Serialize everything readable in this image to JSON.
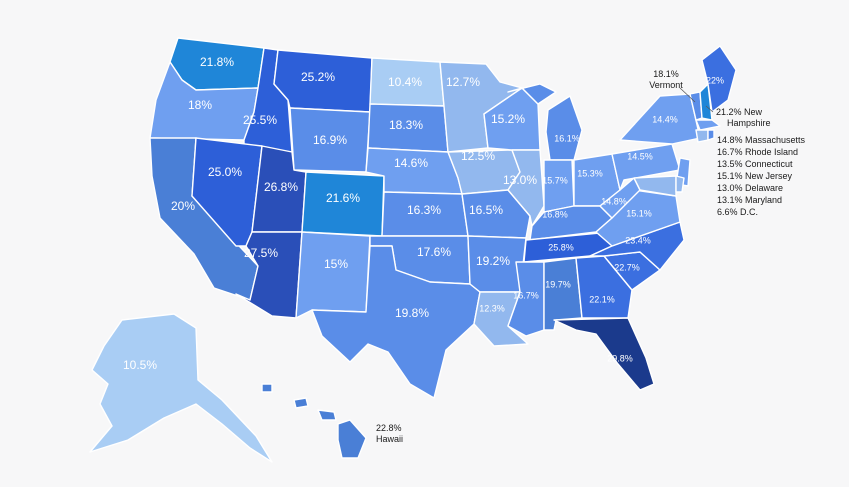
{
  "palette": {
    "background": "#f7f7f8",
    "c10": "#a9cdf4",
    "c13": "#92b8ee",
    "c15": "#6f9ff0",
    "c17": "#5a8de8",
    "c20": "#4a7fd6",
    "c21": "#1f86d8",
    "c23": "#3b6fe0",
    "c25": "#2d5fd8",
    "c27": "#2a4fb8",
    "c30": "#1b3a8c",
    "label_light": "#ffffff",
    "label_dark": "#1a1a1a"
  },
  "states": [
    {
      "code": "WA",
      "value": "21.8%"
    },
    {
      "code": "OR",
      "value": "18%"
    },
    {
      "code": "CA",
      "value": "20%"
    },
    {
      "code": "ID",
      "value": "25.5%"
    },
    {
      "code": "NV",
      "value": "25.0%"
    },
    {
      "code": "MT",
      "value": "25.2%"
    },
    {
      "code": "WY",
      "value": "16.9%"
    },
    {
      "code": "UT",
      "value": "26.8%"
    },
    {
      "code": "CO",
      "value": "21.6%"
    },
    {
      "code": "AZ",
      "value": "27.5%"
    },
    {
      "code": "NM",
      "value": "15%"
    },
    {
      "code": "ND",
      "value": "10.4%"
    },
    {
      "code": "SD",
      "value": "18.3%"
    },
    {
      "code": "NE",
      "value": "14.6%"
    },
    {
      "code": "KS",
      "value": "16.3%"
    },
    {
      "code": "OK",
      "value": "17.6%"
    },
    {
      "code": "TX",
      "value": "19.8%"
    },
    {
      "code": "MN",
      "value": "12.7%"
    },
    {
      "code": "IA",
      "value": "12.5%"
    },
    {
      "code": "MO",
      "value": "16.5%"
    },
    {
      "code": "AR",
      "value": "19.2%"
    },
    {
      "code": "LA",
      "value": "12.3%"
    },
    {
      "code": "WI",
      "value": "15.2%"
    },
    {
      "code": "IL",
      "value": "13.0%"
    },
    {
      "code": "MI",
      "value": "16.1%"
    },
    {
      "code": "IN",
      "value": "15.7%"
    },
    {
      "code": "OH",
      "value": "15.3%"
    },
    {
      "code": "KY",
      "value": "16.8%"
    },
    {
      "code": "TN",
      "value": "25.8%"
    },
    {
      "code": "MS",
      "value": "16.7%"
    },
    {
      "code": "AL",
      "value": "19.7%"
    },
    {
      "code": "GA",
      "value": "22.1%"
    },
    {
      "code": "FL",
      "value": "29.8%"
    },
    {
      "code": "SC",
      "value": "22.7%"
    },
    {
      "code": "NC",
      "value": "23.4%"
    },
    {
      "code": "VA",
      "value": "15.1%"
    },
    {
      "code": "WV",
      "value": "14.8%"
    },
    {
      "code": "PA",
      "value": "14.5%"
    },
    {
      "code": "NY",
      "value": "14.4%"
    },
    {
      "code": "ME",
      "value": "22%"
    },
    {
      "code": "AK",
      "value": "10.5%"
    }
  ],
  "annotations": {
    "vermont_value": "18.1%",
    "vermont_name": "Vermont",
    "nh_value": "21.2% New",
    "nh_name": "Hampshire",
    "hawaii_value": "22.8%",
    "hawaii_name": "Hawaii",
    "list": [
      "14.8% Massachusetts",
      "16.7% Rhode Island",
      "13.5% Connecticut",
      "15.1% New Jersey",
      "13.0% Delaware",
      "13.1% Maryland",
      "6.6% D.C."
    ]
  }
}
